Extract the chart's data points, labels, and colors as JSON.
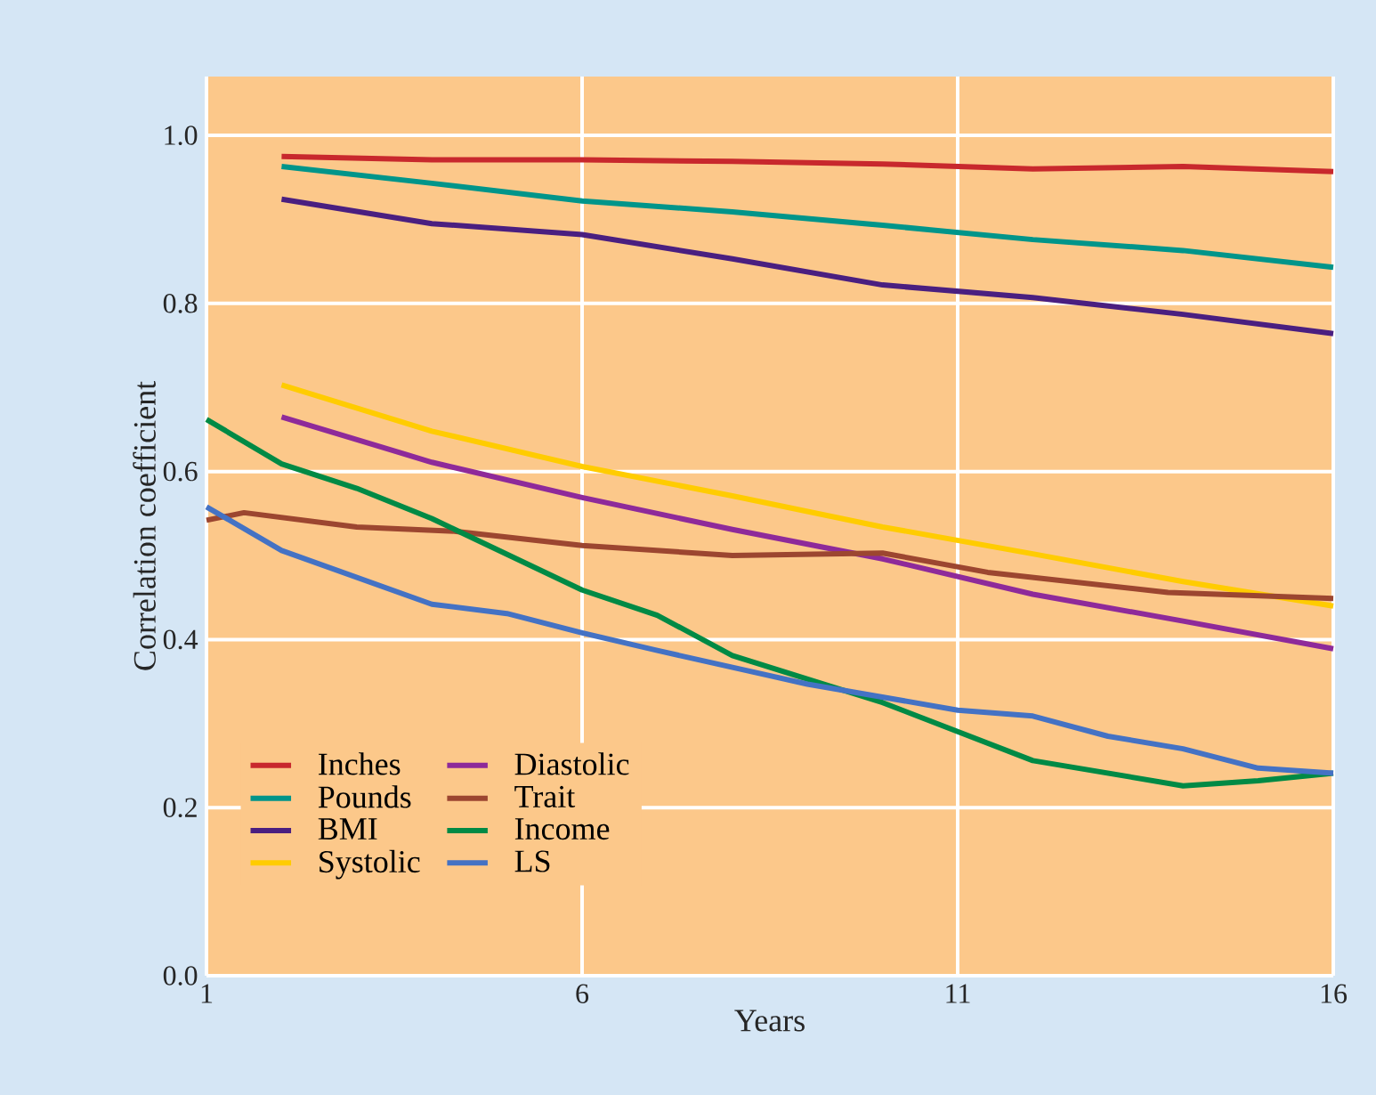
{
  "chart_data": {
    "type": "line",
    "xlabel": "Years",
    "ylabel": "Correlation coefficient",
    "xlim": [
      1,
      16
    ],
    "ylim": [
      0,
      1.07
    ],
    "xticks": [
      1,
      6,
      11,
      16
    ],
    "yticks": [
      {
        "value": 0,
        "label": "0.0"
      },
      {
        "value": 0.2,
        "label": "0.2"
      },
      {
        "value": 0.4,
        "label": "0.4"
      },
      {
        "value": 0.6,
        "label": "0.6"
      },
      {
        "value": 0.8,
        "label": "0.8"
      },
      {
        "value": 1.0,
        "label": "1.0"
      }
    ],
    "grid": true,
    "legend": "bottom left",
    "line_style": "solid",
    "marker": "none",
    "series": [
      {
        "name": "Inches",
        "color": "#c8282d",
        "x": [
          2,
          4,
          6,
          8,
          10,
          12,
          14,
          16
        ],
        "values": [
          0.975,
          0.971,
          0.971,
          0.969,
          0.966,
          0.96,
          0.963,
          0.957
        ]
      },
      {
        "name": "Pounds",
        "color": "#00958a",
        "x": [
          2,
          4,
          6,
          8,
          10,
          12,
          14,
          16
        ],
        "values": [
          0.963,
          0.943,
          0.922,
          0.909,
          0.893,
          0.876,
          0.863,
          0.843
        ]
      },
      {
        "name": "BMI",
        "color": "#4a1f80",
        "x": [
          2,
          4,
          6,
          8,
          10,
          12,
          14,
          16
        ],
        "values": [
          0.924,
          0.895,
          0.882,
          0.853,
          0.822,
          0.807,
          0.787,
          0.764
        ]
      },
      {
        "name": "Systolic",
        "color": "#ffcc00",
        "x": [
          2,
          4,
          6,
          8,
          10,
          12,
          14,
          16
        ],
        "values": [
          0.703,
          0.648,
          0.606,
          0.571,
          0.534,
          0.502,
          0.469,
          0.44
        ]
      },
      {
        "name": "Diastolic",
        "color": "#8e2a9a",
        "x": [
          2,
          4,
          6,
          8,
          10,
          12,
          14,
          16
        ],
        "values": [
          0.665,
          0.611,
          0.569,
          0.531,
          0.496,
          0.454,
          0.422,
          0.389
        ]
      },
      {
        "name": "Trait",
        "color": "#9c4630",
        "x": [
          1,
          1.5,
          3,
          4.3,
          6,
          8,
          10,
          11.4,
          13.8,
          16
        ],
        "values": [
          0.542,
          0.551,
          0.534,
          0.529,
          0.512,
          0.5,
          0.503,
          0.48,
          0.456,
          0.449
        ]
      },
      {
        "name": "Income",
        "color": "#008a45",
        "x": [
          1,
          2,
          3,
          4,
          6,
          7,
          8,
          10,
          12,
          14,
          15,
          16
        ],
        "values": [
          0.662,
          0.609,
          0.58,
          0.544,
          0.459,
          0.429,
          0.381,
          0.325,
          0.256,
          0.226,
          0.232,
          0.241
        ]
      },
      {
        "name": "LS",
        "color": "#4472c4",
        "x": [
          1,
          2,
          4,
          5,
          6,
          7,
          9,
          11,
          12,
          13,
          14,
          15,
          16
        ],
        "values": [
          0.558,
          0.506,
          0.442,
          0.431,
          0.408,
          0.387,
          0.347,
          0.316,
          0.309,
          0.285,
          0.27,
          0.247,
          0.241
        ]
      }
    ]
  }
}
